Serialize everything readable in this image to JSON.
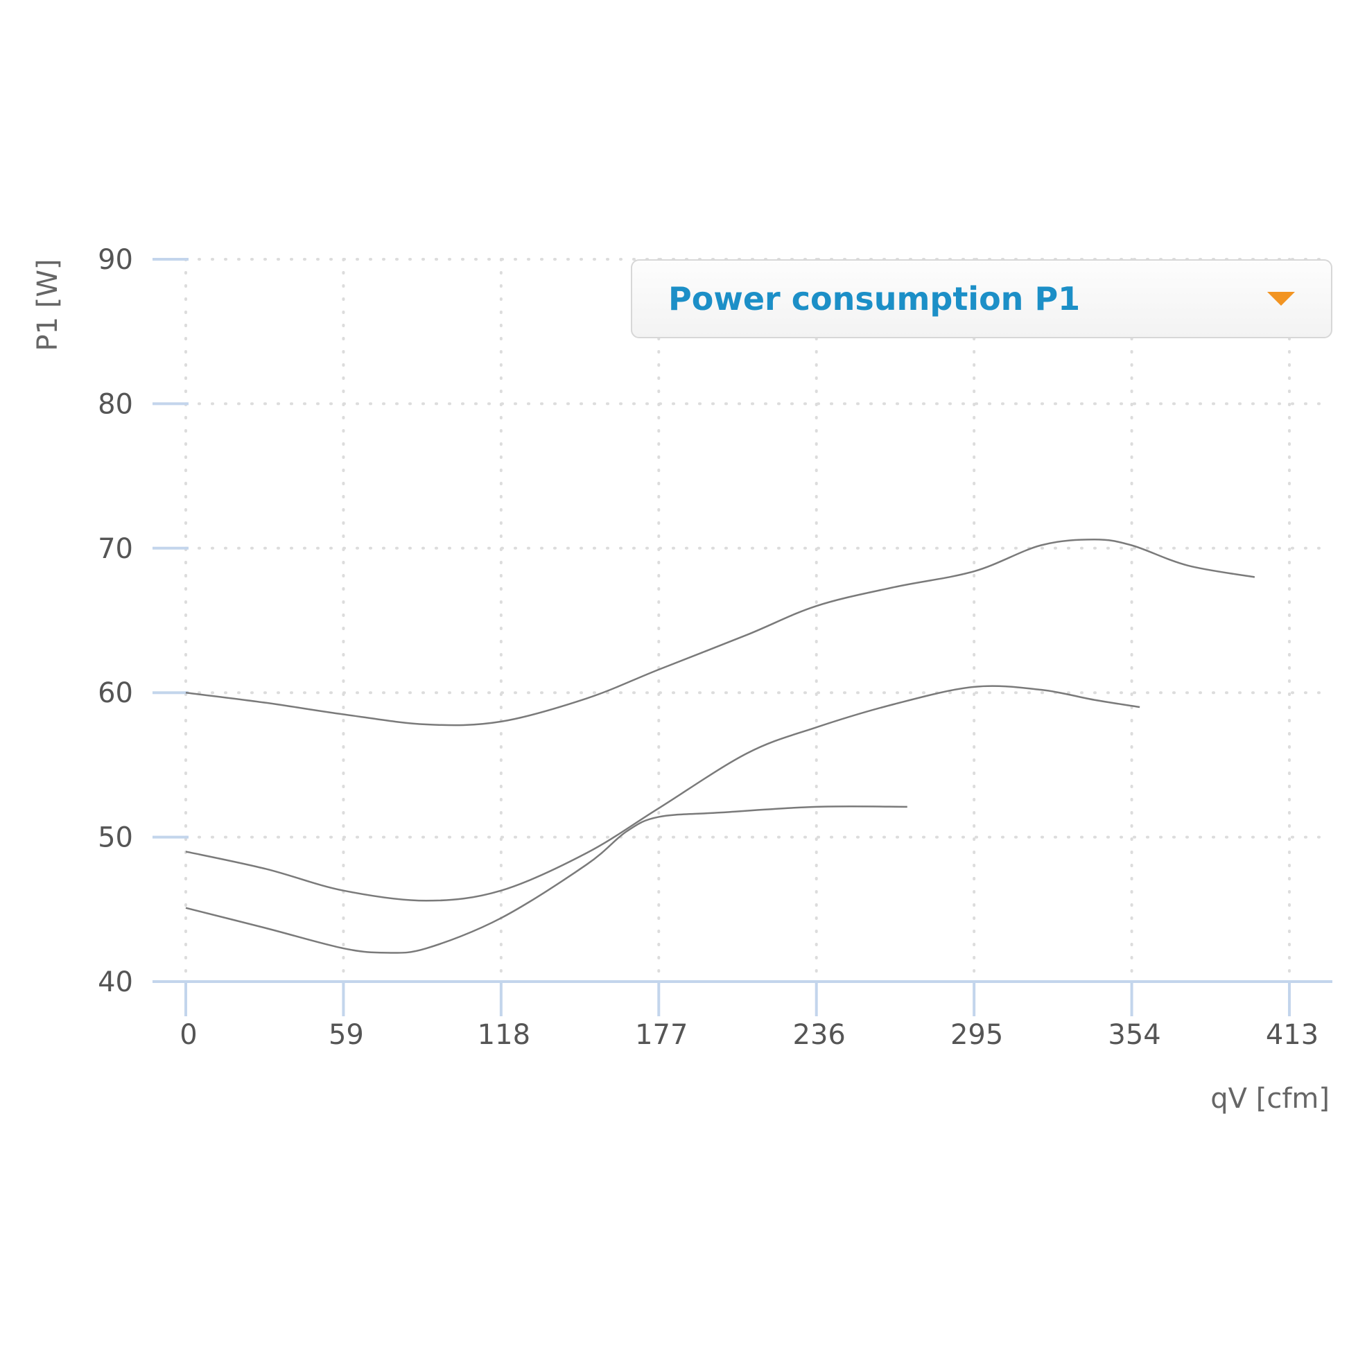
{
  "chart_data": {
    "type": "line",
    "xlabel": "qV [cfm]",
    "ylabel": "P1 [W]",
    "x_ticks": [
      "0",
      "59",
      "118",
      "177",
      "236",
      "295",
      "354",
      "413"
    ],
    "y_ticks": [
      "40",
      "50",
      "60",
      "70",
      "80",
      "90"
    ],
    "xlim": [
      0,
      413
    ],
    "ylim": [
      40,
      90
    ],
    "grid": true,
    "series": [
      {
        "x": [
          0,
          30,
          59,
          90,
          118,
          150,
          177,
          210,
          236,
          265,
          295,
          320,
          340,
          354,
          375,
          400
        ],
        "y": [
          60.0,
          59.3,
          58.5,
          57.8,
          58.0,
          59.6,
          61.6,
          64.0,
          66.0,
          67.3,
          68.4,
          70.2,
          70.6,
          70.2,
          68.8,
          68.0
        ]
      },
      {
        "x": [
          0,
          30,
          59,
          90,
          118,
          150,
          177,
          210,
          236,
          265,
          295,
          320,
          340,
          357
        ],
        "y": [
          49.0,
          47.8,
          46.3,
          45.6,
          46.3,
          48.9,
          52.0,
          55.8,
          57.6,
          59.2,
          60.4,
          60.2,
          59.5,
          59.0
        ]
      },
      {
        "x": [
          0,
          30,
          59,
          75,
          90,
          118,
          150,
          165,
          177,
          200,
          236,
          270
        ],
        "y": [
          45.1,
          43.7,
          42.3,
          42.0,
          42.3,
          44.4,
          48.1,
          50.4,
          51.4,
          51.7,
          52.1,
          52.1
        ]
      }
    ]
  },
  "dropdown": {
    "label": "Power consumption P1"
  }
}
